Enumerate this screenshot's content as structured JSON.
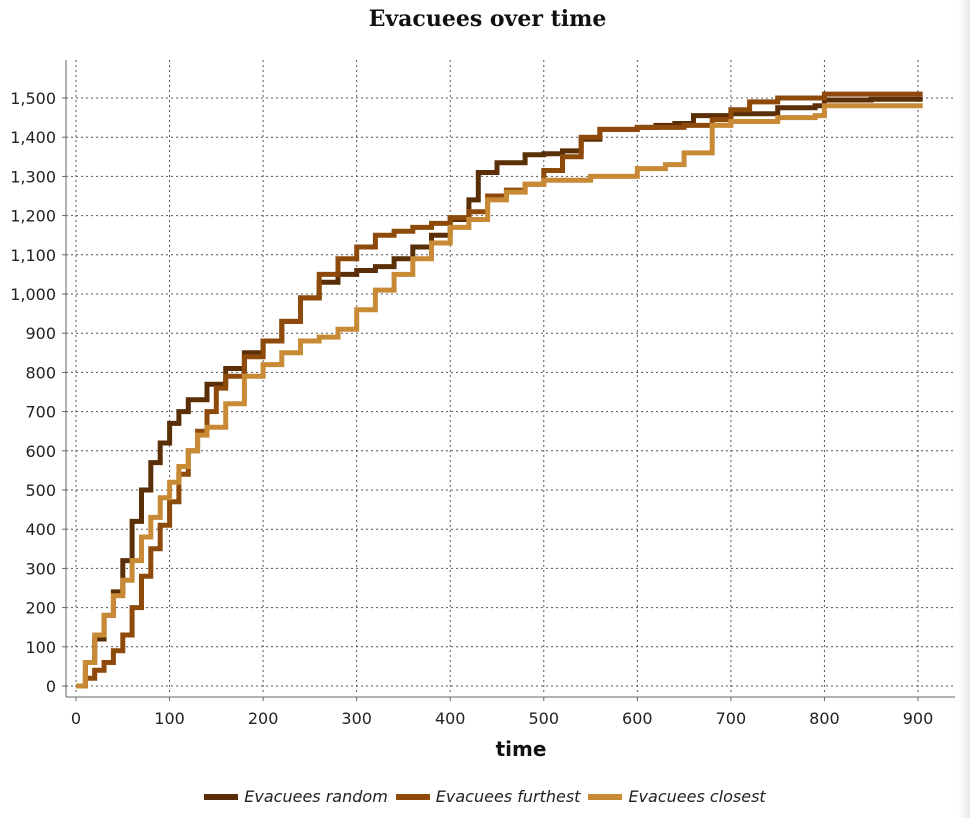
{
  "chart_data": {
    "type": "line",
    "title": "Evacuees over time",
    "xlabel": "time",
    "ylabel": "",
    "xlim": [
      0,
      920
    ],
    "ylim": [
      0,
      1600
    ],
    "xticks": [
      0,
      100,
      200,
      300,
      400,
      500,
      600,
      700,
      800,
      900
    ],
    "xtick_labels": [
      "0",
      "100",
      "200",
      "300",
      "400",
      "500",
      "600",
      "700",
      "800",
      "900"
    ],
    "yticks": [
      0,
      100,
      200,
      300,
      400,
      500,
      600,
      700,
      800,
      900,
      1000,
      1100,
      1200,
      1300,
      1400,
      1500
    ],
    "ytick_labels": [
      "0",
      "100",
      "200",
      "300",
      "400",
      "500",
      "600",
      "700",
      "800",
      "900",
      "1,000",
      "1,100",
      "1,200",
      "1,300",
      "1,400",
      "1,500"
    ],
    "grid": true,
    "legend_position": "bottom",
    "series": [
      {
        "name": "Evacuees random",
        "color": "#5a2f08",
        "x": [
          0,
          10,
          20,
          30,
          40,
          50,
          60,
          70,
          80,
          90,
          100,
          110,
          120,
          140,
          160,
          180,
          200,
          220,
          240,
          260,
          280,
          300,
          320,
          340,
          360,
          380,
          400,
          420,
          430,
          450,
          480,
          500,
          520,
          540,
          560,
          600,
          620,
          640,
          660,
          700,
          750,
          790,
          800,
          850,
          905
        ],
        "y": [
          0,
          60,
          120,
          180,
          240,
          320,
          420,
          500,
          570,
          620,
          670,
          700,
          730,
          770,
          810,
          850,
          880,
          930,
          990,
          1030,
          1050,
          1060,
          1070,
          1090,
          1120,
          1150,
          1190,
          1240,
          1310,
          1335,
          1355,
          1358,
          1365,
          1395,
          1420,
          1425,
          1430,
          1435,
          1455,
          1460,
          1475,
          1480,
          1495,
          1497,
          1497
        ]
      },
      {
        "name": "Evacuees furthest",
        "color": "#8e4a0b",
        "x": [
          0,
          10,
          20,
          30,
          40,
          50,
          60,
          70,
          80,
          90,
          100,
          110,
          120,
          130,
          140,
          150,
          160,
          180,
          200,
          220,
          240,
          260,
          280,
          300,
          320,
          340,
          360,
          380,
          400,
          420,
          440,
          460,
          480,
          500,
          520,
          540,
          560,
          600,
          650,
          680,
          700,
          720,
          750,
          800,
          850,
          905
        ],
        "y": [
          0,
          20,
          40,
          60,
          90,
          130,
          200,
          280,
          350,
          410,
          470,
          540,
          600,
          650,
          700,
          760,
          790,
          840,
          880,
          930,
          990,
          1050,
          1090,
          1120,
          1150,
          1160,
          1170,
          1180,
          1195,
          1210,
          1250,
          1265,
          1280,
          1315,
          1350,
          1400,
          1420,
          1425,
          1430,
          1445,
          1470,
          1490,
          1500,
          1510,
          1510,
          1510
        ]
      },
      {
        "name": "Evacuees closest",
        "color": "#c98a36",
        "x": [
          0,
          10,
          20,
          30,
          40,
          50,
          60,
          70,
          80,
          90,
          100,
          110,
          120,
          130,
          140,
          160,
          180,
          200,
          220,
          240,
          260,
          280,
          300,
          320,
          340,
          360,
          380,
          400,
          420,
          440,
          460,
          480,
          500,
          550,
          600,
          630,
          650,
          680,
          700,
          750,
          790,
          800,
          850,
          905
        ],
        "y": [
          0,
          60,
          130,
          180,
          230,
          270,
          320,
          380,
          430,
          480,
          520,
          560,
          600,
          640,
          660,
          720,
          790,
          820,
          850,
          880,
          890,
          910,
          960,
          1010,
          1050,
          1090,
          1130,
          1170,
          1190,
          1240,
          1260,
          1280,
          1290,
          1300,
          1320,
          1330,
          1360,
          1430,
          1440,
          1450,
          1455,
          1480,
          1480,
          1480
        ]
      }
    ]
  }
}
